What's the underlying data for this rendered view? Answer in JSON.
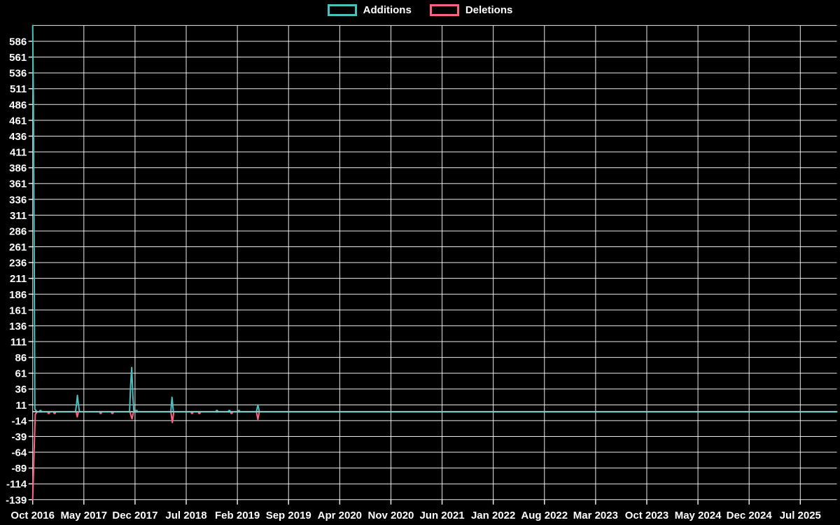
{
  "legend": {
    "items": [
      {
        "label": "Additions",
        "color": "#4bc0c0"
      },
      {
        "label": "Deletions",
        "color": "#ff6384"
      }
    ]
  },
  "chart_data": {
    "type": "line",
    "title": "",
    "xlabel": "",
    "ylabel": "",
    "background": "#000000",
    "grid": true,
    "grid_color": "rgba(255,255,255,0.92)",
    "zero_line_color": "#ffffff",
    "text_color": "#ffffff",
    "legend_position": "top",
    "x_unit": "months_after_first_tick",
    "x_tick_labels": [
      "Oct 2016",
      "May 2017",
      "Dec 2017",
      "Jul 2018",
      "Feb 2019",
      "Sep 2019",
      "Apr 2020",
      "Nov 2020",
      "Jun 2021",
      "Jan 2022",
      "Aug 2022",
      "Mar 2023",
      "Oct 2023",
      "May 2024",
      "Dec 2024",
      "Jul 2025"
    ],
    "x_tick_months": [
      0,
      7,
      14,
      21,
      28,
      35,
      42,
      49,
      56,
      63,
      70,
      77,
      84,
      91,
      98,
      105
    ],
    "x_range_months": [
      0,
      110
    ],
    "y_tick_labels": [
      586,
      561,
      536,
      511,
      486,
      461,
      436,
      411,
      386,
      361,
      336,
      311,
      286,
      261,
      236,
      211,
      186,
      161,
      136,
      111,
      86,
      61,
      36,
      11,
      -14,
      -39,
      -64,
      -89,
      -114,
      -139
    ],
    "y_grid_step": 25,
    "ylim": [
      -139,
      611
    ],
    "series": [
      {
        "name": "Additions",
        "color": "#4bc0c0",
        "points": [
          [
            0,
            611
          ],
          [
            0.1,
            500
          ],
          [
            0.2,
            262
          ],
          [
            0.3,
            4
          ],
          [
            0.6,
            0
          ],
          [
            5.85,
            0
          ],
          [
            6.0,
            12
          ],
          [
            6.12,
            26
          ],
          [
            6.25,
            12
          ],
          [
            6.4,
            0
          ],
          [
            13.25,
            0
          ],
          [
            13.4,
            42
          ],
          [
            13.55,
            70
          ],
          [
            13.7,
            25
          ],
          [
            13.85,
            0
          ],
          [
            18.9,
            0
          ],
          [
            19.05,
            23
          ],
          [
            19.25,
            0
          ],
          [
            30.6,
            0
          ],
          [
            30.8,
            11
          ],
          [
            31.0,
            0
          ],
          [
            110,
            0
          ]
        ],
        "markers": [
          [
            1.06,
            1
          ],
          [
            14.2,
            1
          ],
          [
            25.2,
            1
          ],
          [
            26.9,
            1
          ],
          [
            28.2,
            1
          ]
        ]
      },
      {
        "name": "Deletions",
        "color": "#ff6384",
        "points": [
          [
            0,
            -139
          ],
          [
            0.2,
            -60
          ],
          [
            0.35,
            -4
          ],
          [
            0.6,
            0
          ],
          [
            5.95,
            0
          ],
          [
            6.1,
            -8
          ],
          [
            6.25,
            0
          ],
          [
            13.3,
            0
          ],
          [
            13.5,
            -8
          ],
          [
            13.6,
            -11
          ],
          [
            13.8,
            0
          ],
          [
            18.9,
            0
          ],
          [
            19.0,
            -8
          ],
          [
            19.1,
            -17
          ],
          [
            19.3,
            0
          ],
          [
            30.6,
            0
          ],
          [
            30.8,
            -12
          ],
          [
            31.0,
            0
          ],
          [
            110,
            0
          ]
        ],
        "markers": [
          [
            2.2,
            -1.5
          ],
          [
            3.0,
            -1.5
          ],
          [
            9.3,
            -1.5
          ],
          [
            10.9,
            -1.5
          ],
          [
            21.8,
            -1.5
          ],
          [
            22.8,
            -1.5
          ],
          [
            27.2,
            -1.5
          ]
        ]
      }
    ]
  }
}
